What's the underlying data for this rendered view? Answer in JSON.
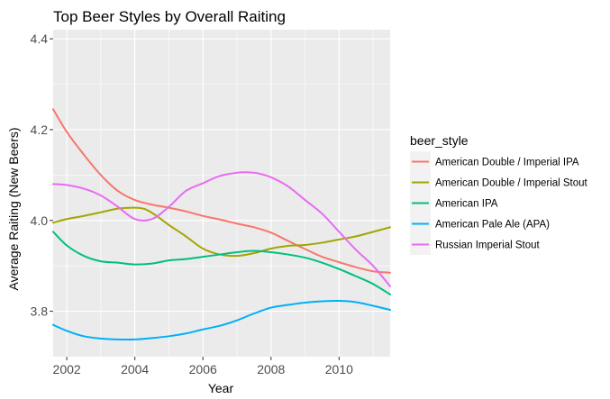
{
  "chart_data": {
    "type": "line",
    "title": "Top Beer Styles by Overall Raiting",
    "xlabel": "Year",
    "ylabel": "Average Raiting (New Beers)",
    "xlim": [
      2001.6,
      2011.5
    ],
    "ylim": [
      3.7,
      4.42
    ],
    "x_ticks": [
      2002,
      2004,
      2006,
      2008,
      2010
    ],
    "x_tick_labels": [
      "2002",
      "2004",
      "2006",
      "2008",
      "2010"
    ],
    "y_ticks": [
      3.8,
      4.0,
      4.2,
      4.4
    ],
    "y_tick_labels": [
      "3.8",
      "4.0",
      "4.2",
      "4.4"
    ],
    "grid": true,
    "legend": {
      "title": "beer_style",
      "position": "right"
    },
    "series": [
      {
        "name": "American Double / Imperial IPA",
        "color": "#F8766D",
        "x": [
          2001.6,
          2002.0,
          2002.5,
          2003.0,
          2003.5,
          2004.0,
          2004.5,
          2005.0,
          2005.5,
          2006.0,
          2006.5,
          2007.0,
          2007.5,
          2008.0,
          2008.5,
          2009.0,
          2009.5,
          2010.0,
          2010.5,
          2011.0,
          2011.5
        ],
        "y": [
          4.245,
          4.195,
          4.145,
          4.1,
          4.065,
          4.045,
          4.035,
          4.028,
          4.02,
          4.01,
          4.002,
          3.993,
          3.985,
          3.973,
          3.955,
          3.937,
          3.92,
          3.908,
          3.897,
          3.888,
          3.885
        ]
      },
      {
        "name": "American Double / Imperial Stout",
        "color": "#A3A500",
        "x": [
          2001.6,
          2002.0,
          2002.5,
          2003.0,
          2003.5,
          2004.0,
          2004.3,
          2004.6,
          2005.0,
          2005.5,
          2006.0,
          2006.5,
          2007.0,
          2007.5,
          2008.0,
          2008.5,
          2009.0,
          2009.5,
          2010.0,
          2010.5,
          2011.0,
          2011.5
        ],
        "y": [
          3.995,
          4.003,
          4.01,
          4.018,
          4.026,
          4.028,
          4.025,
          4.012,
          3.99,
          3.965,
          3.938,
          3.925,
          3.922,
          3.928,
          3.938,
          3.944,
          3.946,
          3.951,
          3.958,
          3.965,
          3.975,
          3.985
        ]
      },
      {
        "name": "American IPA",
        "color": "#00BF7D",
        "x": [
          2001.6,
          2002.0,
          2002.5,
          2003.0,
          2003.5,
          2004.0,
          2004.5,
          2005.0,
          2005.5,
          2006.0,
          2006.5,
          2007.0,
          2007.5,
          2008.0,
          2008.5,
          2009.0,
          2009.5,
          2010.0,
          2010.5,
          2011.0,
          2011.5
        ],
        "y": [
          3.975,
          3.945,
          3.922,
          3.91,
          3.907,
          3.903,
          3.905,
          3.912,
          3.915,
          3.92,
          3.925,
          3.93,
          3.933,
          3.93,
          3.925,
          3.918,
          3.907,
          3.893,
          3.877,
          3.86,
          3.837
        ]
      },
      {
        "name": "American Pale Ale (APA)",
        "color": "#00B0F6",
        "x": [
          2001.6,
          2002.0,
          2002.5,
          2003.0,
          2003.5,
          2004.0,
          2004.5,
          2005.0,
          2005.5,
          2006.0,
          2006.5,
          2007.0,
          2007.5,
          2008.0,
          2008.5,
          2009.0,
          2009.5,
          2010.0,
          2010.5,
          2011.0,
          2011.5
        ],
        "y": [
          3.77,
          3.757,
          3.745,
          3.74,
          3.738,
          3.738,
          3.741,
          3.745,
          3.751,
          3.76,
          3.768,
          3.78,
          3.795,
          3.808,
          3.814,
          3.819,
          3.822,
          3.823,
          3.82,
          3.812,
          3.803
        ]
      },
      {
        "name": "Russian Imperial Stout",
        "color": "#E76BF3",
        "x": [
          2001.6,
          2002.0,
          2002.5,
          2003.0,
          2003.5,
          2004.0,
          2004.5,
          2005.0,
          2005.5,
          2006.0,
          2006.5,
          2007.0,
          2007.3,
          2007.6,
          2008.0,
          2008.5,
          2009.0,
          2009.5,
          2010.0,
          2010.5,
          2011.0,
          2011.5
        ],
        "y": [
          4.08,
          4.078,
          4.07,
          4.055,
          4.03,
          4.003,
          4.003,
          4.03,
          4.065,
          4.082,
          4.098,
          4.105,
          4.106,
          4.104,
          4.095,
          4.075,
          4.045,
          4.015,
          3.975,
          3.935,
          3.9,
          3.855
        ]
      }
    ]
  }
}
